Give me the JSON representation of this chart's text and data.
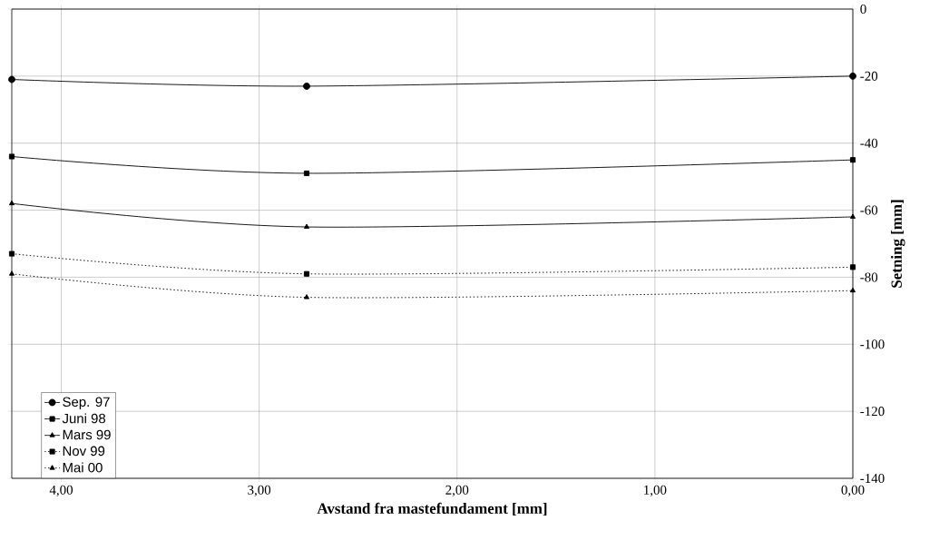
{
  "chart_data": {
    "type": "line",
    "xlabel": "Avstand fra mastefundament [mm]",
    "ylabel": "Setning [mm]",
    "x": [
      4.25,
      2.76,
      0
    ],
    "series": [
      {
        "name": "Sep. 97",
        "color": "#000000",
        "marker": "circle",
        "line_style": "solid",
        "values": [
          -21,
          -23,
          -20
        ]
      },
      {
        "name": "Juni 98",
        "color": "#000000",
        "marker": "square",
        "line_style": "solid",
        "values": [
          -44,
          -49,
          -45
        ]
      },
      {
        "name": "Mars 99",
        "color": "#000000",
        "marker": "triangle",
        "line_style": "solid",
        "values": [
          -58,
          -65,
          -62
        ]
      },
      {
        "name": "Nov 99",
        "color": "#000000",
        "marker": "square",
        "line_style": "dotted",
        "values": [
          -73,
          -79,
          -77
        ]
      },
      {
        "name": "Mai 00",
        "color": "#000000",
        "marker": "triangle",
        "line_style": "dotted",
        "values": [
          -79,
          -86,
          -84
        ]
      }
    ],
    "xlim": [
      4.25,
      0
    ],
    "ylim": [
      -140,
      0
    ],
    "xticks": [
      {
        "value": 4,
        "label": "4,00"
      },
      {
        "value": 3,
        "label": "3,00"
      },
      {
        "value": 2,
        "label": "2,00"
      },
      {
        "value": 1,
        "label": "1,00"
      },
      {
        "value": 0,
        "label": "0,00"
      }
    ],
    "yticks": [
      0,
      -20,
      -40,
      -60,
      -80,
      -100,
      -120,
      -140
    ],
    "grid": true,
    "legend": "bottom left"
  }
}
